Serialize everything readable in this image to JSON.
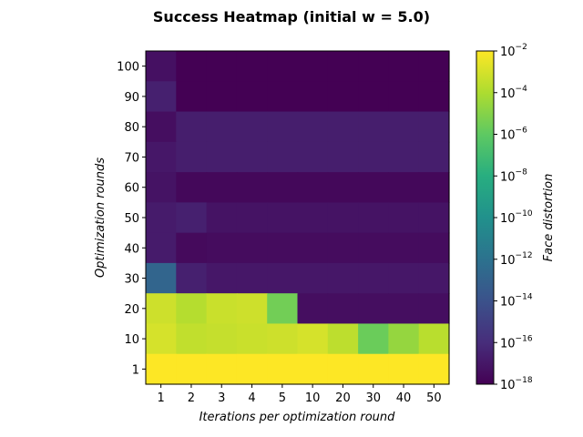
{
  "chart_data": {
    "type": "heatmap",
    "title": "Success Heatmap (initial w = 5.0)",
    "xlabel": "Iterations per optimization round",
    "ylabel": "Optimization rounds",
    "colorbar_label": "Face distortion",
    "colormap": "viridis",
    "color_scale": "log",
    "color_range": [
      1e-18,
      0.01
    ],
    "x_categories": [
      "1",
      "2",
      "3",
      "4",
      "5",
      "10",
      "20",
      "30",
      "40",
      "50"
    ],
    "y_categories": [
      "1",
      "10",
      "20",
      "30",
      "40",
      "50",
      "60",
      "70",
      "80",
      "90",
      "100"
    ],
    "colorbar_ticks": [
      {
        "base": "10",
        "exp": "−2",
        "value": 0.01
      },
      {
        "base": "10",
        "exp": "−4",
        "value": 0.0001
      },
      {
        "base": "10",
        "exp": "−6",
        "value": 1e-06
      },
      {
        "base": "10",
        "exp": "−8",
        "value": 1e-08
      },
      {
        "base": "10",
        "exp": "−10",
        "value": 1e-10
      },
      {
        "base": "10",
        "exp": "−12",
        "value": 1e-12
      },
      {
        "base": "10",
        "exp": "−14",
        "value": 1e-14
      },
      {
        "base": "10",
        "exp": "−16",
        "value": 1e-16
      },
      {
        "base": "10",
        "exp": "−18",
        "value": 1e-18
      }
    ],
    "log10_values_rows_top_to_bottom": [
      [
        -17.3,
        -18,
        -18,
        -18,
        -18,
        -18,
        -18,
        -18,
        -18,
        -18
      ],
      [
        -16.6,
        -18,
        -18,
        -18,
        -18,
        -18,
        -18,
        -18,
        -18,
        -18
      ],
      [
        -17.4,
        -16.7,
        -16.7,
        -16.7,
        -16.7,
        -16.7,
        -16.7,
        -16.7,
        -16.7,
        -16.7
      ],
      [
        -17.0,
        -16.7,
        -16.7,
        -16.7,
        -16.7,
        -16.7,
        -16.7,
        -16.7,
        -16.7,
        -16.7
      ],
      [
        -17.2,
        -17.7,
        -17.7,
        -17.7,
        -17.7,
        -17.7,
        -17.7,
        -17.7,
        -17.7,
        -17.7
      ],
      [
        -16.8,
        -16.6,
        -17.2,
        -17.2,
        -17.2,
        -17.2,
        -17.2,
        -17.2,
        -17.2,
        -17.2
      ],
      [
        -16.8,
        -17.6,
        -17.5,
        -17.5,
        -17.5,
        -17.5,
        -17.5,
        -17.5,
        -17.5,
        -17.5
      ],
      [
        -12.8,
        -16.6,
        -17.0,
        -17.0,
        -17.0,
        -17.0,
        -17.0,
        -17.0,
        -17.0,
        -17.0
      ],
      [
        -3.2,
        -3.8,
        -3.3,
        -3.2,
        -5.5,
        -17.4,
        -17.4,
        -17.4,
        -17.4,
        -17.4
      ],
      [
        -3.0,
        -3.5,
        -3.4,
        -3.3,
        -3.2,
        -3.0,
        -3.6,
        -5.7,
        -4.6,
        -3.7
      ],
      [
        -2.0,
        -2.0,
        -2.0,
        -2.0,
        -2.0,
        -2.0,
        -2.0,
        -2.0,
        -2.0,
        -2.0
      ]
    ]
  }
}
